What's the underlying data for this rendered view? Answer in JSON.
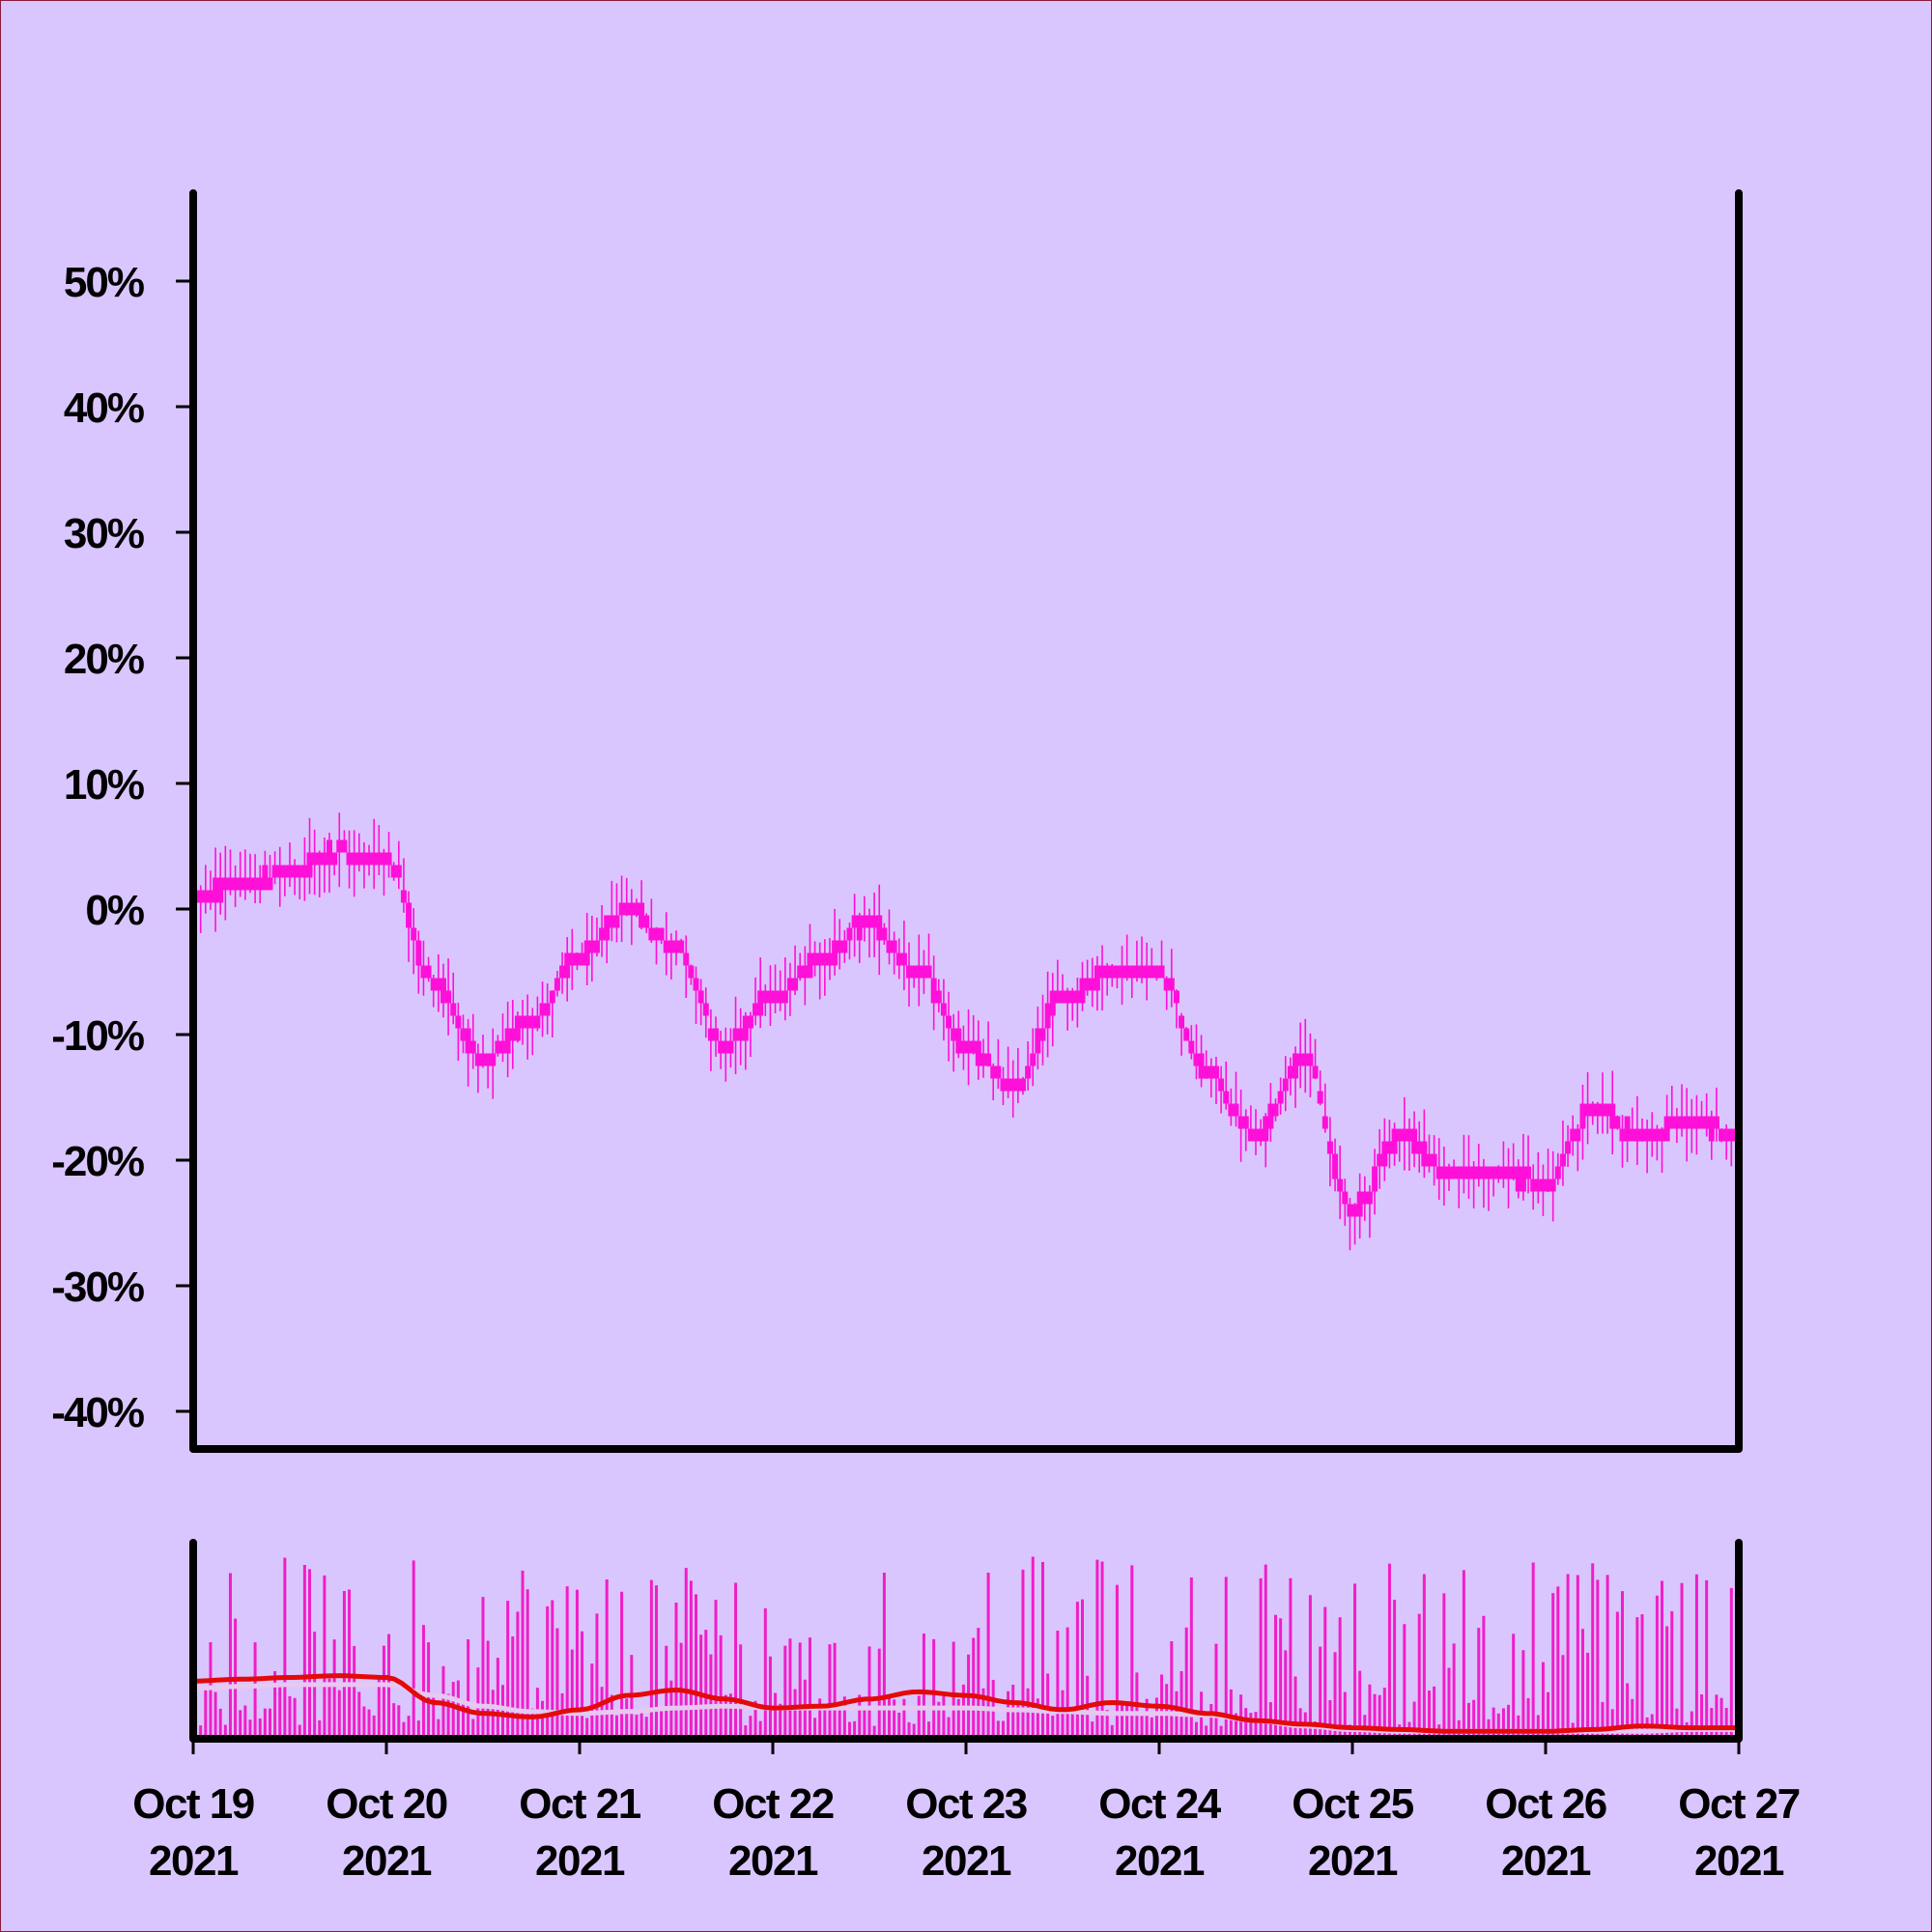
{
  "chart_data": {
    "type": "candlestick",
    "title": "",
    "xlabel": "",
    "ylabel": "",
    "colors": {
      "background": "#dac6fe",
      "candle": "#ff10d8",
      "volume": "#f01ec8",
      "ma_fast": "#e30a0a",
      "ma_slow": "#e6c8f0",
      "axis": "#000000"
    },
    "y_axis": {
      "range": [
        -43,
        57
      ],
      "ticks": [
        50,
        40,
        30,
        20,
        10,
        0,
        -10,
        -20,
        -30,
        -40
      ],
      "tick_labels": [
        "50%",
        "40%",
        "30%",
        "20%",
        "10%",
        "0%",
        "-10%",
        "-20%",
        "-30%",
        "-40%"
      ]
    },
    "x_axis": {
      "range": [
        "2021-10-19",
        "2021-10-27"
      ],
      "ticks": [
        {
          "date": "2021-10-19",
          "line1": "Oct 19",
          "line2": "2021"
        },
        {
          "date": "2021-10-20",
          "line1": "Oct 20",
          "line2": "2021"
        },
        {
          "date": "2021-10-21",
          "line1": "Oct 21",
          "line2": "2021"
        },
        {
          "date": "2021-10-22",
          "line1": "Oct 22",
          "line2": "2021"
        },
        {
          "date": "2021-10-23",
          "line1": "Oct 23",
          "line2": "2021"
        },
        {
          "date": "2021-10-24",
          "line1": "Oct 24",
          "line2": "2021"
        },
        {
          "date": "2021-10-25",
          "line1": "Oct 25",
          "line2": "2021"
        },
        {
          "date": "2021-10-26",
          "line1": "Oct 26",
          "line2": "2021"
        },
        {
          "date": "2021-10-27",
          "line1": "Oct 27",
          "line2": "2021"
        }
      ]
    },
    "price_path": {
      "unit": "percent change",
      "dates": [
        "2021-10-19 00:00",
        "2021-10-19 06:00",
        "2021-10-19 12:00",
        "2021-10-19 18:00",
        "2021-10-20 00:00",
        "2021-10-20 06:00",
        "2021-10-20 12:00",
        "2021-10-20 18:00",
        "2021-10-21 00:00",
        "2021-10-21 06:00",
        "2021-10-21 12:00",
        "2021-10-21 18:00",
        "2021-10-22 00:00",
        "2021-10-22 06:00",
        "2021-10-22 12:00",
        "2021-10-22 18:00",
        "2021-10-23 00:00",
        "2021-10-23 06:00",
        "2021-10-23 12:00",
        "2021-10-23 18:00",
        "2021-10-24 00:00",
        "2021-10-24 06:00",
        "2021-10-24 12:00",
        "2021-10-24 18:00",
        "2021-10-25 00:00",
        "2021-10-25 06:00",
        "2021-10-25 12:00",
        "2021-10-25 18:00",
        "2021-10-26 00:00",
        "2021-10-26 06:00",
        "2021-10-26 12:00",
        "2021-10-26 18:00",
        "2021-10-27 00:00"
      ],
      "values": [
        1,
        2,
        3,
        4.5,
        4,
        -6,
        -12,
        -9,
        -4,
        0,
        -3,
        -11,
        -7,
        -4,
        -1,
        -5,
        -11,
        -14,
        -7,
        -5,
        -5,
        -13,
        -18,
        -12,
        -24,
        -18,
        -21,
        -21,
        -22,
        -16,
        -18,
        -17,
        -18
      ],
      "volatility": 1.3
    },
    "volume_panel": {
      "bar_count": 312,
      "ma_fast": [
        0.3,
        0.31,
        0.32,
        0.33,
        0.32,
        0.18,
        0.12,
        0.1,
        0.14,
        0.22,
        0.25,
        0.2,
        0.15,
        0.16,
        0.2,
        0.24,
        0.22,
        0.18,
        0.14,
        0.18,
        0.16,
        0.12,
        0.08,
        0.06,
        0.04,
        0.03,
        0.02,
        0.02,
        0.02,
        0.03,
        0.05,
        0.04,
        0.04
      ],
      "ma_slow": [
        0.26,
        0.27,
        0.28,
        0.28,
        0.28,
        0.22,
        0.16,
        0.13,
        0.12,
        0.13,
        0.15,
        0.16,
        0.15,
        0.15,
        0.15,
        0.15,
        0.15,
        0.14,
        0.13,
        0.12,
        0.12,
        0.11,
        0.08,
        0.05,
        0.03,
        0.02,
        0.02,
        0.02,
        0.02,
        0.02,
        0.02,
        0.03,
        0.03
      ]
    }
  }
}
